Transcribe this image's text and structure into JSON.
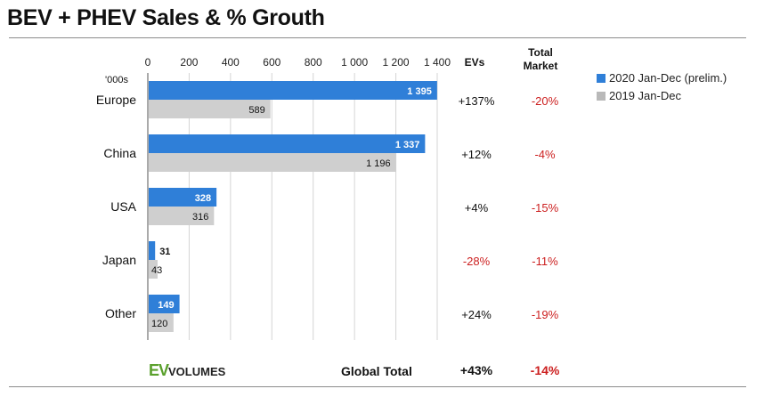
{
  "title": "BEV + PHEV Sales & % Grouth",
  "unit_label": "'000s",
  "headers": {
    "evs": "EVs",
    "total_market": "Total\nMarket"
  },
  "legend": [
    {
      "label": "2020 Jan-Dec (prelim.)",
      "color": "#2f7fd8"
    },
    {
      "label": "2019 Jan-Dec",
      "color": "#b9b9b9"
    }
  ],
  "chart_data": {
    "type": "bar",
    "orientation": "horizontal",
    "categories": [
      "Europe",
      "China",
      "USA",
      "Japan",
      "Other"
    ],
    "series": [
      {
        "name": "2020 Jan-Dec (prelim.)",
        "values": [
          1395,
          1337,
          328,
          31,
          149
        ],
        "color": "#2f7fd8"
      },
      {
        "name": "2019 Jan-Dec",
        "values": [
          589,
          1196,
          316,
          43,
          120
        ],
        "color": "#cfcfcf"
      }
    ],
    "value_labels_2020": [
      "1 395",
      "1 337",
      "328",
      "31",
      "149"
    ],
    "value_labels_2019": [
      "589",
      "1 196",
      "316",
      "43",
      "120"
    ],
    "xlim": [
      0,
      1400
    ],
    "xticks": [
      0,
      200,
      400,
      600,
      800,
      1000,
      1200,
      1400
    ],
    "xtick_labels": [
      "0",
      "200",
      "400",
      "600",
      "800",
      "1 000",
      "1 200",
      "1 400"
    ],
    "grid": true,
    "legend_position": "top-right"
  },
  "growth": {
    "evs": [
      "+137%",
      "+12%",
      "+4%",
      "-28%",
      "+24%"
    ],
    "total_market": [
      "-20%",
      "-4%",
      "-15%",
      "-11%",
      "-19%"
    ]
  },
  "global_total": {
    "label": "Global Total",
    "evs": "+43%",
    "total_market": "-14%"
  },
  "logo": {
    "ev": "EV",
    "text": "VOLUMES"
  },
  "colors": {
    "positive": "#111111",
    "negative": "#cc1f1f"
  }
}
